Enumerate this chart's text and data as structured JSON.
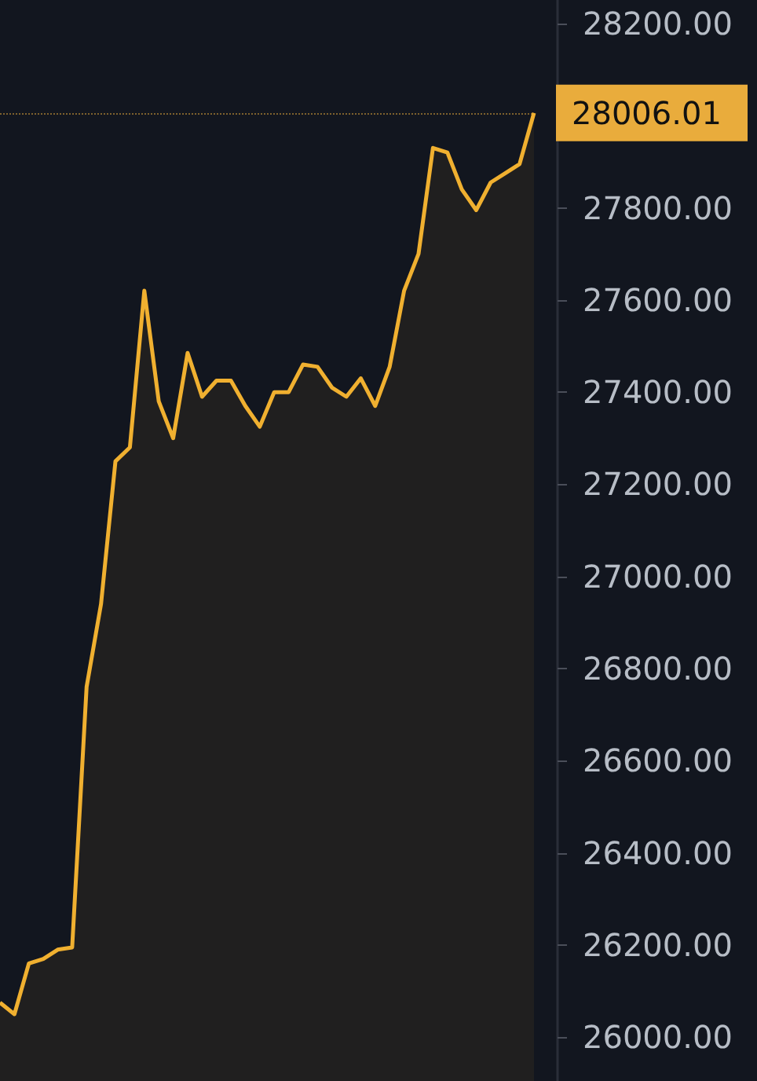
{
  "chart_data": {
    "type": "area",
    "categories": [
      null,
      null,
      null,
      null,
      null,
      null,
      null,
      null,
      null,
      null,
      null,
      null,
      null,
      null,
      null,
      null,
      null,
      null,
      null,
      null,
      null,
      null,
      null,
      null,
      null,
      null,
      null,
      null,
      null,
      null,
      null,
      null,
      null,
      null,
      null,
      null,
      null,
      null
    ],
    "series": [
      {
        "color": "#f0b030",
        "values": [
          26075,
          26050,
          26160,
          26170,
          26190,
          26195,
          26760,
          26940,
          27250,
          27280,
          27620,
          27380,
          27300,
          27485,
          27390,
          27425,
          27425,
          27370,
          27325,
          27400,
          27400,
          27460,
          27455,
          27410,
          27390,
          27430,
          27370,
          27455,
          27620,
          27700,
          27930,
          27920,
          27840,
          27795,
          27855,
          27875,
          27895,
          28006
        ]
      }
    ],
    "ylim": [
      25905,
      28251
    ],
    "yticks": [
      {
        "value": 26000,
        "label": "26000.00"
      },
      {
        "value": 26200,
        "label": "26200.00"
      },
      {
        "value": 26400,
        "label": "26400.00"
      },
      {
        "value": 26600,
        "label": "26600.00"
      },
      {
        "value": 26800,
        "label": "26800.00"
      },
      {
        "value": 27000,
        "label": "27000.00"
      },
      {
        "value": 27200,
        "label": "27200.00"
      },
      {
        "value": 27400,
        "label": "27400.00"
      },
      {
        "value": 27600,
        "label": "27600.00"
      },
      {
        "value": 27800,
        "label": "27800.00"
      },
      {
        "value": 28000,
        "label": null
      },
      {
        "value": 28200,
        "label": "28200.00"
      }
    ],
    "ref_lines": [
      {
        "axis": "y",
        "value": 28006.01,
        "label": "28006.01",
        "color": "#e9ac3c"
      }
    ],
    "tick_labels": "y",
    "grid": false
  }
}
